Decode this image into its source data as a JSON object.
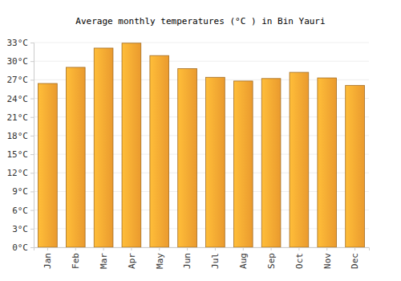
{
  "chart_data": {
    "type": "bar",
    "title": "Average monthly temperatures (°C ) in Bin Yauri",
    "categories": [
      "Jan",
      "Feb",
      "Mar",
      "Apr",
      "May",
      "Jun",
      "Jul",
      "Aug",
      "Sep",
      "Oct",
      "Nov",
      "Dec"
    ],
    "values": [
      26.4,
      29.0,
      32.1,
      32.9,
      30.9,
      28.8,
      27.4,
      26.8,
      27.2,
      28.2,
      27.3,
      26.1
    ],
    "color": "#fba531",
    "ylim": [
      0,
      33
    ],
    "yticks": [
      {
        "value": 0,
        "label": "0°C"
      },
      {
        "value": 3,
        "label": "3°C"
      },
      {
        "value": 6,
        "label": "6°C"
      },
      {
        "value": 9,
        "label": "9°C"
      },
      {
        "value": 12,
        "label": "12°C"
      },
      {
        "value": 15,
        "label": "15°C"
      },
      {
        "value": 18,
        "label": "18°C"
      },
      {
        "value": 21,
        "label": "21°C"
      },
      {
        "value": 24,
        "label": "24°C"
      },
      {
        "value": 27,
        "label": "27°C"
      },
      {
        "value": 30,
        "label": "30°C"
      },
      {
        "value": 33,
        "label": "33°C"
      }
    ],
    "grid": true
  }
}
